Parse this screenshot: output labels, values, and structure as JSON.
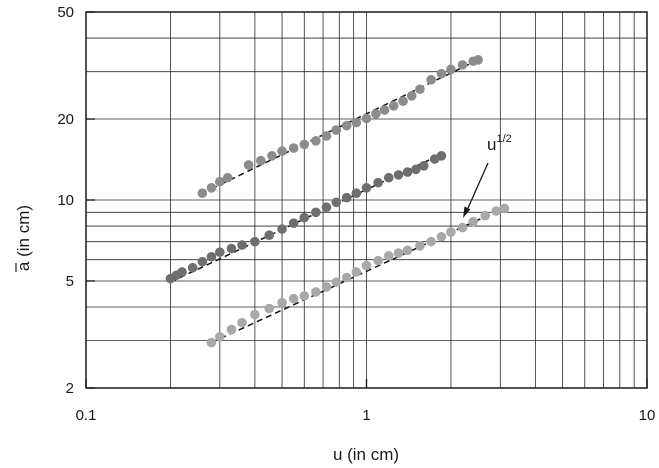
{
  "chart_data": {
    "type": "scatter",
    "xscale": "log",
    "yscale": "log",
    "xlim": [
      0.1,
      10
    ],
    "ylim": [
      2,
      50
    ],
    "xlabel": "u (in cm)",
    "ylabel": "a (in cm)",
    "ylabel_overbar": true,
    "grid": true,
    "x_ticks": [
      {
        "value": 0.1,
        "label": "0.1"
      },
      {
        "value": 1,
        "label": "1"
      },
      {
        "value": 10,
        "label": "10"
      }
    ],
    "y_ticks": [
      {
        "value": 2,
        "label": "2"
      },
      {
        "value": 5,
        "label": "5"
      },
      {
        "value": 10,
        "label": "10"
      },
      {
        "value": 20,
        "label": "20"
      },
      {
        "value": 50,
        "label": "50"
      }
    ],
    "series": [
      {
        "color": "#8c8c8c",
        "points": [
          [
            0.26,
            10.6
          ],
          [
            0.28,
            11.1
          ],
          [
            0.3,
            11.7
          ],
          [
            0.32,
            12.1
          ],
          [
            0.38,
            13.5
          ],
          [
            0.42,
            14.0
          ],
          [
            0.46,
            14.6
          ],
          [
            0.5,
            15.2
          ],
          [
            0.55,
            15.6
          ],
          [
            0.6,
            16.1
          ],
          [
            0.66,
            16.6
          ],
          [
            0.72,
            17.3
          ],
          [
            0.78,
            18.2
          ],
          [
            0.85,
            18.9
          ],
          [
            0.92,
            19.4
          ],
          [
            1.0,
            20.1
          ],
          [
            1.08,
            20.9
          ],
          [
            1.16,
            21.6
          ],
          [
            1.25,
            22.4
          ],
          [
            1.35,
            23.3
          ],
          [
            1.45,
            24.4
          ],
          [
            1.55,
            25.8
          ],
          [
            1.7,
            28.0
          ],
          [
            1.85,
            29.5
          ],
          [
            2.0,
            30.6
          ],
          [
            2.2,
            31.8
          ],
          [
            2.4,
            32.8
          ],
          [
            2.5,
            33.2
          ]
        ],
        "fit": [
          [
            0.28,
            11.0
          ],
          [
            2.5,
            33.2
          ]
        ]
      },
      {
        "color": "#6e6e6e",
        "points": [
          [
            0.2,
            5.1
          ],
          [
            0.21,
            5.25
          ],
          [
            0.22,
            5.4
          ],
          [
            0.24,
            5.6
          ],
          [
            0.26,
            5.9
          ],
          [
            0.28,
            6.15
          ],
          [
            0.3,
            6.4
          ],
          [
            0.33,
            6.6
          ],
          [
            0.36,
            6.8
          ],
          [
            0.4,
            7.0
          ],
          [
            0.45,
            7.4
          ],
          [
            0.5,
            7.8
          ],
          [
            0.55,
            8.2
          ],
          [
            0.6,
            8.6
          ],
          [
            0.66,
            9.0
          ],
          [
            0.72,
            9.4
          ],
          [
            0.78,
            9.8
          ],
          [
            0.85,
            10.2
          ],
          [
            0.92,
            10.6
          ],
          [
            1.0,
            11.1
          ],
          [
            1.1,
            11.6
          ],
          [
            1.2,
            12.1
          ],
          [
            1.3,
            12.4
          ],
          [
            1.4,
            12.7
          ],
          [
            1.5,
            13.0
          ],
          [
            1.6,
            13.4
          ],
          [
            1.75,
            14.2
          ],
          [
            1.85,
            14.6
          ]
        ],
        "fit": [
          [
            0.2,
            4.95
          ],
          [
            1.85,
            14.8
          ]
        ]
      },
      {
        "color": "#a8a8a8",
        "points": [
          [
            0.28,
            2.95
          ],
          [
            0.3,
            3.1
          ],
          [
            0.33,
            3.3
          ],
          [
            0.36,
            3.5
          ],
          [
            0.4,
            3.75
          ],
          [
            0.45,
            3.95
          ],
          [
            0.5,
            4.15
          ],
          [
            0.55,
            4.3
          ],
          [
            0.6,
            4.4
          ],
          [
            0.66,
            4.55
          ],
          [
            0.72,
            4.75
          ],
          [
            0.78,
            4.95
          ],
          [
            0.85,
            5.15
          ],
          [
            0.92,
            5.4
          ],
          [
            1.0,
            5.7
          ],
          [
            1.1,
            5.95
          ],
          [
            1.2,
            6.2
          ],
          [
            1.3,
            6.35
          ],
          [
            1.4,
            6.5
          ],
          [
            1.55,
            6.75
          ],
          [
            1.7,
            7.0
          ],
          [
            1.85,
            7.3
          ],
          [
            2.0,
            7.6
          ],
          [
            2.2,
            7.9
          ],
          [
            2.4,
            8.3
          ],
          [
            2.65,
            8.75
          ],
          [
            2.9,
            9.1
          ],
          [
            3.1,
            9.3
          ]
        ],
        "fit": [
          [
            0.28,
            2.95
          ],
          [
            3.1,
            9.35
          ]
        ]
      }
    ],
    "annotation": {
      "base": "u",
      "exponent": "1/2"
    }
  }
}
